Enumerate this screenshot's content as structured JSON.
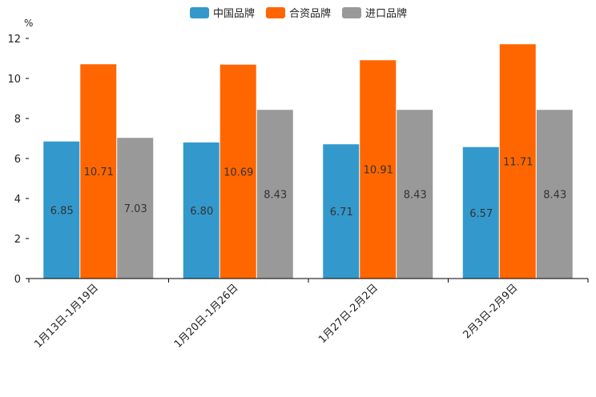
{
  "chart_data": {
    "type": "bar",
    "title": "",
    "xlabel": "",
    "ylabel": "%",
    "ylim": [
      0,
      12
    ],
    "yticks": [
      0,
      2,
      4,
      6,
      8,
      10,
      12
    ],
    "grid": false,
    "legend_position": "top-center",
    "categories": [
      "1月13日-1月19日",
      "1月20日-1月26日",
      "1月27日-2月2日",
      "2月3日-2月9日"
    ],
    "series": [
      {
        "name": "中国品牌",
        "color": "#3399cc",
        "values": [
          6.85,
          6.8,
          6.71,
          6.57
        ],
        "labels": [
          "6.85",
          "6.80",
          "6.71",
          "6.57"
        ]
      },
      {
        "name": "合资品牌",
        "color": "#ff6600",
        "values": [
          10.71,
          10.69,
          10.91,
          11.71
        ],
        "labels": [
          "10.71",
          "10.69",
          "10.91",
          "11.71"
        ]
      },
      {
        "name": "进口品牌",
        "color": "#999999",
        "values": [
          7.03,
          8.43,
          8.43,
          8.43
        ],
        "labels": [
          "7.03",
          "8.43",
          "8.43",
          "8.43"
        ]
      }
    ]
  }
}
